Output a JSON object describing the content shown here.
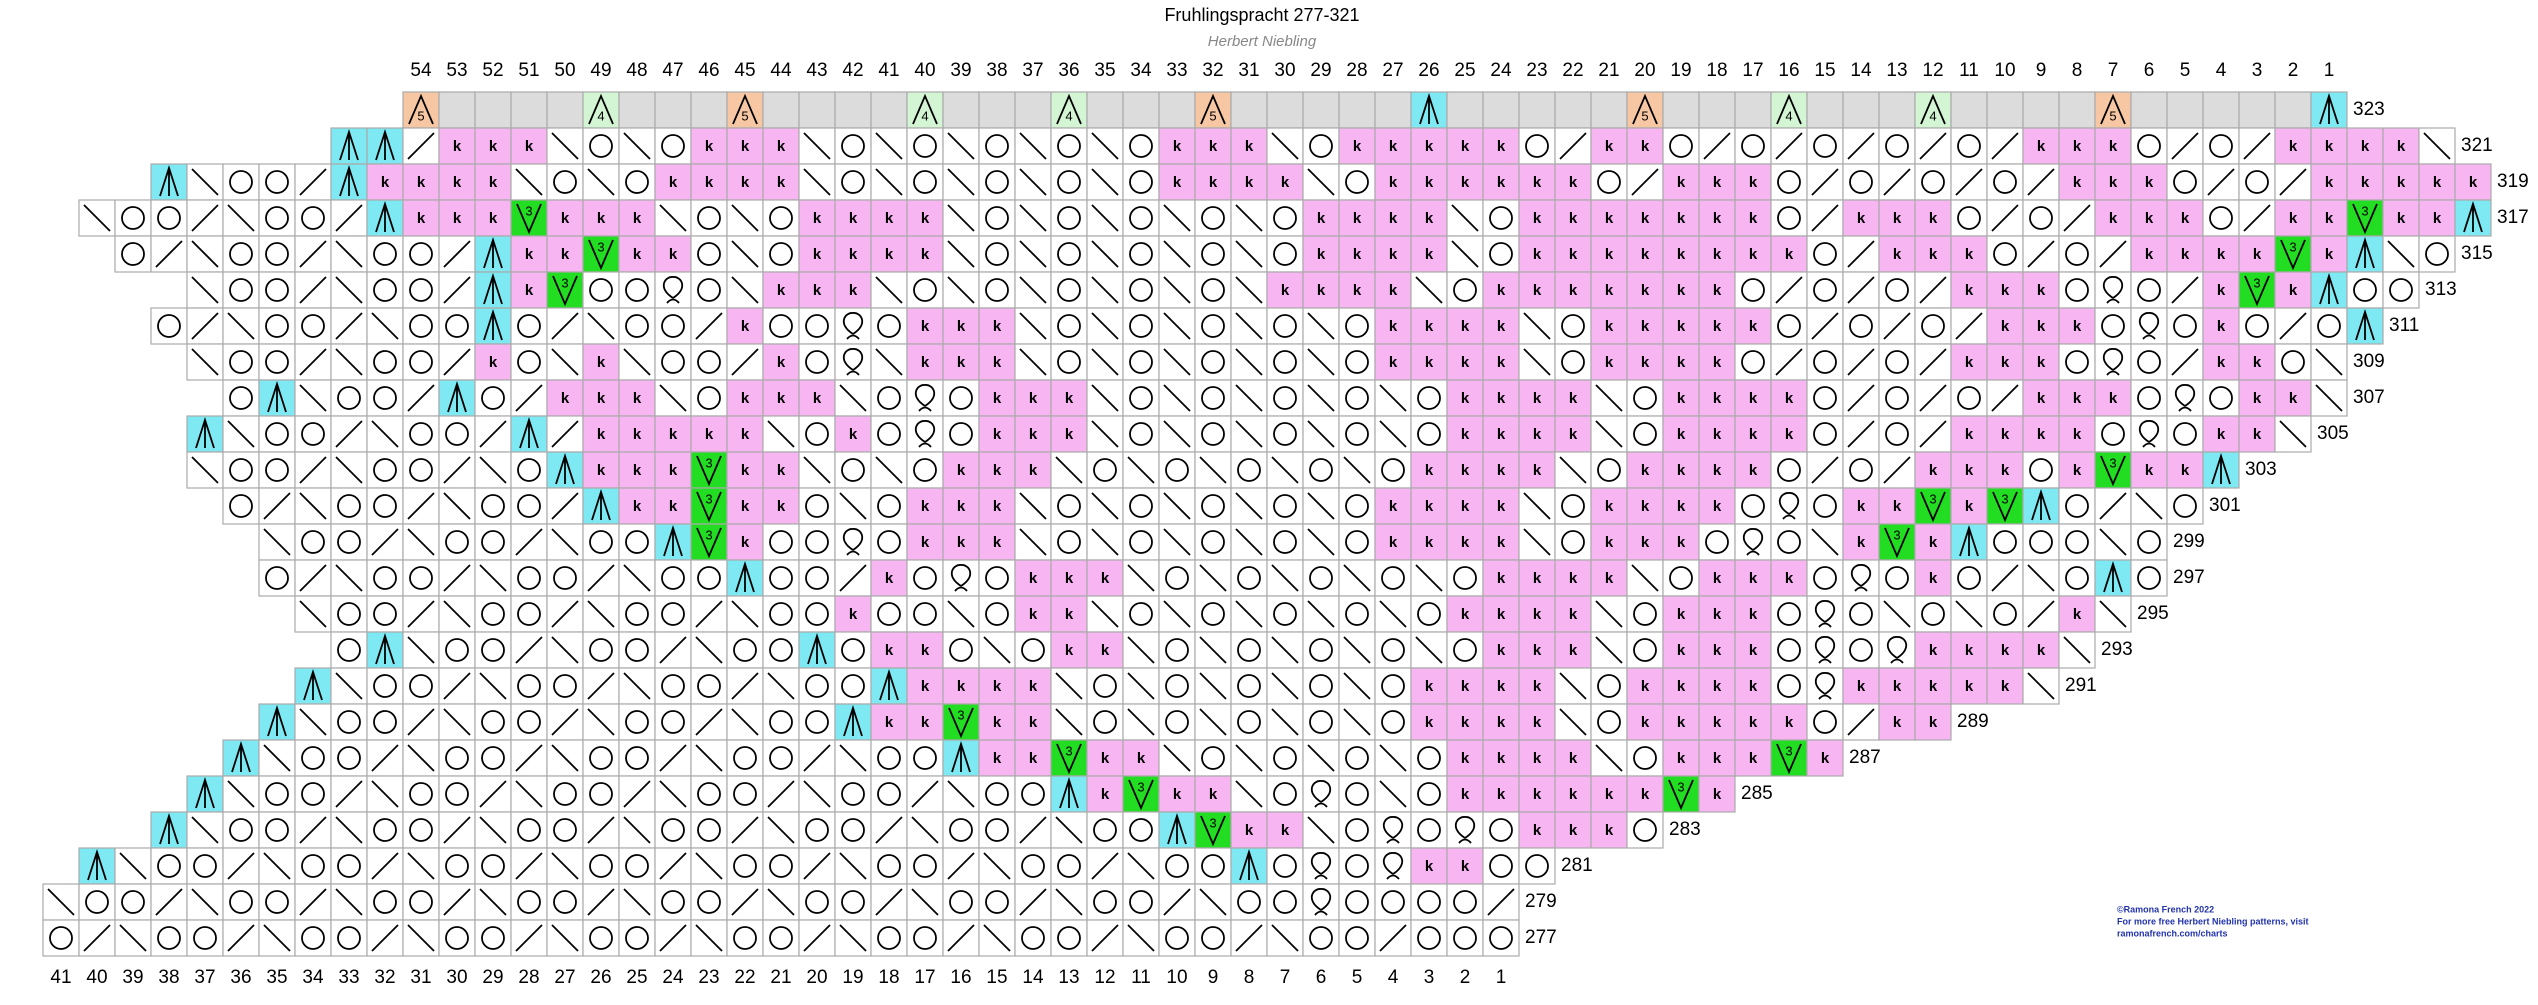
{
  "title": "Fruhlingspracht 277-321",
  "author": "Herbert Niebling",
  "top_columns": [
    54,
    53,
    52,
    51,
    50,
    49,
    48,
    47,
    46,
    45,
    44,
    43,
    42,
    41,
    40,
    39,
    38,
    37,
    36,
    35,
    34,
    33,
    32,
    31,
    30,
    29,
    28,
    27,
    26,
    25,
    24,
    23,
    22,
    21,
    20,
    19,
    18,
    17,
    16,
    15,
    14,
    13,
    12,
    11,
    10,
    9,
    8,
    7,
    6,
    5,
    4,
    3,
    2,
    1
  ],
  "bottom_columns": [
    41,
    40,
    39,
    38,
    37,
    36,
    35,
    34,
    33,
    32,
    31,
    30,
    29,
    28,
    27,
    26,
    25,
    24,
    23,
    22,
    21,
    20,
    19,
    18,
    17,
    16,
    15,
    14,
    13,
    12,
    11,
    10,
    9,
    8,
    7,
    6,
    5,
    4,
    3,
    2,
    1
  ],
  "rows": [
    {
      "label": 323,
      "cells": "5....4...5....4...4...5.....A.....5...4...4....5.....A"
    },
    {
      "label": 321,
      "cells": "AARkkkLoLokkkLoLoLoLoLokkkLokkkkkoRkkoRoRoRoRoRkkkoRoRkkkkL"
    },
    {
      "label": 319,
      "cells": "ALooRAkkkkLoLokkkkLoLoLoLoLokkkkLokkkkkkoRkkkoRoRoRoRkkkoRoRkkkkk"
    },
    {
      "label": 317,
      "cells": "LooRLooRAkkk3kkkLoLokkkkLoLoLoLoLokkkkLokkkkkkkoRkkkoRoRkkkoRkk3kkA"
    },
    {
      "label": 315,
      "cells": "oRLooRLooRAkk3kkoLokkkkLoLoLoLoLokkkkLokkkkkkkkoRkkkoRoRkkkk3kALo"
    },
    {
      "label": 313,
      "cells": "LooRLooRAk3ooqoLkkkLoLoLoLoLoLkkkkLokkkkkkkoRoRoRkkkoqoRk3kAoo"
    },
    {
      "label": 311,
      "cells": "oRLooRLooAoRLooRkooqokkkLoLoLoLoLokkkkLokkkkkoRoRoRkkkoqokoRoA"
    },
    {
      "label": 309,
      "cells": "LooRLooRkoLkLooRkoqLkkkLoLoLoLoLokkkkLokkkkoRoRoRkkkoqoRkkoL"
    },
    {
      "label": 307,
      "cells": "oALooRAoRkkkLokkkLoqokkkLoLoLoLoLokkkkLokkkkoRoRoRkkkoqokkL"
    },
    {
      "label": 305,
      "cells": "ALooRLooRARkkkkkLokoqokkkLoLoLoLoLokkkkLokkkkoRoRkkkkoqokkL"
    },
    {
      "label": 303,
      "cells": "LooRLooRLoAkkk3kkLoLokkkLoLoLoLoLokkkkLokkkkoRoRkkkok3kkA"
    },
    {
      "label": 301,
      "cells": "oRLooRLooRAkk3kkoLokkkLoLoLoLoLokkkkLokkkkoqokk3k3AoRLo"
    },
    {
      "label": 299,
      "cells": "LooRLooRLooA3kooqokkkLoLoLoLoLokkkkLokkkoqoLk3kAoooLo"
    },
    {
      "label": 297,
      "cells": "oRLooRLooRLooAooRkoqokkkLoLoLoLoLokkkkLokkkoqokoRLoAo"
    },
    {
      "label": 295,
      "cells": "LooRLooRLooRLookooLokkLoLoLoLoLokkkkLokkkoqoLoLoRkL"
    },
    {
      "label": 293,
      "cells": "oALooRLooRLooAokkoLokkLoLoLoLoLokkkLokkkoqoqkkkkL"
    },
    {
      "label": 291,
      "cells": "ALooRLooRLooRLooAkkkkLoLoLoLoLokkkkLokkkkoqkkkkkL"
    },
    {
      "label": 289,
      "cells": "ALooRLooRLooRLooAkk3kkLoLoLoLoLokkkkLokkkkkoRkk"
    },
    {
      "label": 287,
      "cells": "ALooRLooRLooRLooRLooAkk3kkLoLoLoLokkkkLokkk3k"
    },
    {
      "label": 285,
      "cells": "ALooRLooRLooRLooRLooRLooAk3kkLoqoLokkkkkk3k"
    },
    {
      "label": 283,
      "cells": "ALooRLooRLooRLooRLooRLooRLooA3kkLoqoqokkko"
    },
    {
      "label": 281,
      "cells": "ALooRLooRLooRLooRLooRLooRLooRLooAoqoqkkoo"
    },
    {
      "label": 279,
      "cells": "LooRLooRLooRLooRLooRLooRLooRLooRLooqooooR"
    },
    {
      "label": 277,
      "cells": "oRLooRLooRLooRLooRLooRLooRLooRLooRLooRooo"
    }
  ],
  "credits": [
    "©Ramona French 2022",
    "For more free Herbert Niebling patterns, visit",
    "ramonafrench.com/charts"
  ]
}
